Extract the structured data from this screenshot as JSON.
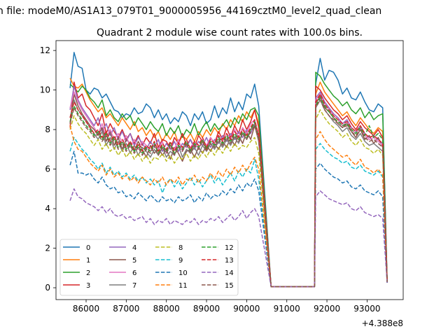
{
  "figure": {
    "suptitle": "n file: modeM0/AS1A13_079T01_9000005956_44169cztM0_level2_quad_clean"
  },
  "chart_data": {
    "type": "line",
    "title": "Quadrant 2 module wise count rates with 100.0s bins.",
    "xlabel": "",
    "ylabel": "",
    "x_offset_label": "+4.388e8",
    "xlim": [
      85250,
      93900
    ],
    "ylim": [
      -0.6,
      12.5
    ],
    "x_ticks": [
      86000,
      87000,
      88000,
      89000,
      90000,
      91000,
      92000,
      93000
    ],
    "y_ticks": [
      0,
      2,
      4,
      6,
      8,
      10,
      12
    ],
    "grid": false,
    "legend": {
      "placement": "lower-left",
      "columns": 4
    },
    "series": [
      {
        "name": "0",
        "style": "solid",
        "color": "#1f77b4",
        "values": [
          10.1,
          11.9,
          11.2,
          11.1,
          10.0,
          9.8,
          10.1,
          10.0,
          9.6,
          9.8,
          9.4,
          9.0,
          8.9,
          8.6,
          8.8,
          8.7,
          9.1,
          8.8,
          8.9,
          9.3,
          9.1,
          8.6,
          9.0,
          8.5,
          8.8,
          8.3,
          8.6,
          8.4,
          8.9,
          8.7,
          8.2,
          8.8,
          8.5,
          8.9,
          8.3,
          8.5,
          9.2,
          8.6,
          9.1,
          8.8,
          9.6,
          8.9,
          9.4,
          9.0,
          9.8,
          9.6,
          10.3,
          9.2,
          0.05,
          0.05,
          10.3,
          11.6,
          10.5,
          11.0,
          10.9,
          10.5,
          9.8,
          10.1,
          9.6,
          9.5,
          9.9,
          9.4,
          9.0,
          8.9,
          9.3,
          9.1,
          0.3
        ]
      },
      {
        "name": "1",
        "style": "solid",
        "color": "#ff7f0e",
        "values": [
          10.6,
          10.2,
          10.1,
          10.3,
          9.9,
          9.5,
          9.2,
          8.9,
          9.1,
          8.6,
          8.8,
          8.5,
          8.2,
          8.6,
          8.3,
          8.0,
          8.4,
          7.9,
          8.1,
          7.7,
          8.0,
          7.6,
          7.9,
          7.4,
          7.8,
          7.5,
          7.9,
          7.3,
          7.7,
          7.5,
          7.8,
          7.4,
          7.9,
          7.6,
          8.0,
          7.7,
          8.1,
          7.8,
          8.3,
          8.0,
          8.5,
          8.2,
          8.7,
          8.4,
          8.9,
          8.6,
          9.0,
          8.3,
          0.05,
          0.05,
          9.8,
          10.4,
          9.9,
          9.6,
          9.3,
          9.0,
          8.7,
          8.9,
          8.5,
          8.2,
          8.6,
          8.3,
          8.0,
          7.8,
          8.1,
          7.9,
          0.25
        ]
      },
      {
        "name": "2",
        "style": "solid",
        "color": "#2ca02c",
        "values": [
          10.3,
          10.1,
          9.9,
          10.2,
          10.0,
          9.6,
          9.4,
          9.1,
          9.5,
          8.7,
          9.0,
          8.6,
          8.4,
          8.8,
          8.5,
          8.7,
          8.2,
          8.6,
          8.3,
          8.0,
          8.4,
          8.1,
          7.9,
          8.3,
          7.7,
          8.1,
          7.8,
          8.2,
          7.6,
          8.0,
          7.8,
          8.3,
          7.7,
          8.1,
          8.4,
          7.9,
          8.3,
          8.0,
          8.2,
          8.5,
          8.1,
          8.6,
          8.3,
          8.8,
          8.5,
          9.0,
          9.1,
          8.7,
          0.05,
          0.05,
          10.9,
          10.7,
          10.3,
          10.0,
          9.7,
          9.5,
          9.2,
          9.4,
          9.0,
          8.8,
          9.1,
          8.6,
          8.9,
          8.5,
          8.7,
          8.8,
          0.3
        ]
      },
      {
        "name": "3",
        "style": "solid",
        "color": "#d62728",
        "values": [
          8.1,
          10.4,
          9.6,
          9.8,
          9.2,
          9.0,
          8.6,
          8.2,
          8.8,
          7.8,
          8.3,
          7.9,
          7.6,
          8.0,
          7.5,
          7.8,
          7.3,
          7.7,
          7.2,
          7.6,
          7.3,
          7.8,
          7.1,
          7.5,
          7.4,
          7.0,
          7.6,
          7.3,
          7.8,
          7.2,
          7.5,
          7.1,
          7.7,
          7.4,
          7.0,
          7.6,
          7.3,
          7.9,
          7.5,
          8.1,
          7.6,
          8.2,
          7.8,
          8.5,
          8.0,
          8.4,
          9.0,
          8.1,
          0.05,
          0.05,
          10.2,
          10.0,
          9.6,
          9.3,
          9.0,
          8.8,
          8.5,
          8.7,
          8.3,
          8.0,
          8.4,
          8.1,
          7.9,
          7.7,
          8.0,
          7.6,
          0.3
        ]
      },
      {
        "name": "4",
        "style": "solid",
        "color": "#9467bd",
        "values": [
          9.0,
          10.2,
          9.5,
          9.1,
          8.8,
          8.5,
          8.2,
          8.6,
          7.9,
          8.3,
          7.7,
          8.1,
          7.5,
          7.9,
          7.4,
          7.8,
          7.2,
          7.6,
          7.3,
          7.0,
          7.4,
          7.1,
          7.5,
          6.9,
          7.3,
          7.0,
          7.4,
          6.9,
          7.3,
          7.1,
          7.5,
          7.0,
          7.4,
          7.2,
          7.6,
          7.1,
          7.5,
          7.3,
          7.7,
          7.4,
          7.8,
          7.5,
          7.9,
          7.6,
          8.0,
          7.8,
          8.3,
          7.6,
          0.05,
          0.05,
          9.6,
          9.9,
          9.4,
          9.1,
          8.8,
          8.6,
          8.3,
          8.5,
          8.1,
          7.9,
          8.2,
          7.8,
          7.6,
          7.7,
          7.5,
          7.3,
          0.3
        ]
      },
      {
        "name": "5",
        "style": "solid",
        "color": "#8c564b",
        "values": [
          8.3,
          9.8,
          9.2,
          8.8,
          8.5,
          8.2,
          8.0,
          7.7,
          8.1,
          7.4,
          7.9,
          7.2,
          7.6,
          7.0,
          7.5,
          7.3,
          6.9,
          7.4,
          7.0,
          6.6,
          7.2,
          6.8,
          7.1,
          6.7,
          7.0,
          6.5,
          7.1,
          6.8,
          6.4,
          6.9,
          7.0,
          6.6,
          7.1,
          6.8,
          7.2,
          6.9,
          7.3,
          7.0,
          7.4,
          7.1,
          7.6,
          7.2,
          7.7,
          7.3,
          7.9,
          7.5,
          8.2,
          7.4,
          0.05,
          0.05,
          9.3,
          9.7,
          9.1,
          8.9,
          8.6,
          8.3,
          8.1,
          8.3,
          7.9,
          7.6,
          8.0,
          7.5,
          7.7,
          7.3,
          7.6,
          7.1,
          0.3
        ]
      },
      {
        "name": "6",
        "style": "solid",
        "color": "#e377c2",
        "values": [
          9.1,
          9.9,
          9.4,
          9.0,
          8.7,
          8.4,
          8.1,
          7.8,
          8.3,
          7.6,
          8.0,
          7.5,
          7.8,
          7.3,
          7.7,
          7.1,
          7.5,
          7.0,
          7.4,
          7.2,
          6.9,
          7.3,
          7.0,
          7.4,
          6.8,
          7.2,
          7.0,
          7.5,
          6.9,
          7.3,
          7.1,
          7.4,
          7.0,
          7.5,
          7.2,
          7.6,
          7.3,
          7.7,
          7.4,
          7.8,
          7.5,
          8.0,
          7.6,
          8.1,
          7.8,
          8.3,
          8.5,
          7.7,
          0.05,
          0.05,
          9.5,
          9.8,
          9.3,
          9.0,
          8.7,
          8.5,
          8.2,
          8.4,
          8.0,
          7.8,
          8.1,
          7.7,
          7.5,
          7.6,
          7.4,
          7.2,
          0.3
        ]
      },
      {
        "name": "7",
        "style": "solid",
        "color": "#7f7f7f",
        "values": [
          8.6,
          9.5,
          9.0,
          8.7,
          8.4,
          8.1,
          7.8,
          7.5,
          7.9,
          7.2,
          7.6,
          7.0,
          7.4,
          6.9,
          7.3,
          6.8,
          7.2,
          6.7,
          7.1,
          6.9,
          6.6,
          7.0,
          6.7,
          7.1,
          6.6,
          6.9,
          6.7,
          7.2,
          6.6,
          7.0,
          6.8,
          7.1,
          6.7,
          7.2,
          6.9,
          7.3,
          7.0,
          7.4,
          7.1,
          7.5,
          7.2,
          7.6,
          7.3,
          7.8,
          7.5,
          8.0,
          8.3,
          7.4,
          0.05,
          0.05,
          9.1,
          9.5,
          9.0,
          8.7,
          8.4,
          8.2,
          7.9,
          8.1,
          7.7,
          7.5,
          7.8,
          7.4,
          7.2,
          7.3,
          7.1,
          6.9,
          0.3
        ]
      },
      {
        "name": "8",
        "style": "dashed",
        "color": "#bcbd22",
        "values": [
          8.0,
          8.7,
          8.3,
          8.0,
          7.8,
          7.5,
          7.2,
          7.5,
          7.0,
          7.3,
          6.9,
          7.1,
          6.7,
          7.0,
          6.6,
          6.9,
          6.5,
          6.8,
          6.4,
          6.7,
          6.3,
          6.6,
          6.5,
          6.8,
          6.4,
          6.7,
          6.3,
          6.6,
          6.5,
          6.8,
          6.4,
          6.7,
          6.5,
          6.9,
          6.6,
          7.0,
          6.7,
          7.1,
          6.8,
          7.2,
          6.9,
          7.3,
          7.0,
          7.2,
          7.1,
          7.4,
          7.6,
          6.8,
          0.05,
          0.05,
          8.5,
          9.0,
          8.6,
          8.3,
          8.1,
          7.9,
          7.6,
          7.8,
          7.4,
          7.2,
          7.5,
          7.1,
          7.0,
          6.8,
          7.0,
          6.7,
          0.3
        ]
      },
      {
        "name": "9",
        "style": "dashed",
        "color": "#17becf",
        "values": [
          6.9,
          7.6,
          7.3,
          7.0,
          6.8,
          6.5,
          6.3,
          6.0,
          6.3,
          5.8,
          6.1,
          5.7,
          5.9,
          5.6,
          5.8,
          5.5,
          5.7,
          5.4,
          5.6,
          5.3,
          5.5,
          5.2,
          5.4,
          4.8,
          5.3,
          5.5,
          5.1,
          5.4,
          5.0,
          5.3,
          5.6,
          5.2,
          5.5,
          5.1,
          5.4,
          5.7,
          5.3,
          5.6,
          5.2,
          5.5,
          5.8,
          5.4,
          5.9,
          5.6,
          6.0,
          5.8,
          6.5,
          5.5,
          0.05,
          0.05,
          7.0,
          7.3,
          7.0,
          6.8,
          6.6,
          6.5,
          6.3,
          6.4,
          6.1,
          6.0,
          6.2,
          5.9,
          5.8,
          5.7,
          5.9,
          5.6,
          0.3
        ]
      },
      {
        "name": "10",
        "style": "dashed",
        "color": "#1f77b4",
        "values": [
          6.2,
          6.9,
          5.8,
          5.8,
          5.7,
          5.8,
          5.5,
          5.3,
          5.6,
          5.2,
          5.0,
          5.1,
          4.8,
          4.9,
          4.6,
          4.7,
          4.5,
          4.8,
          4.6,
          4.4,
          4.7,
          4.5,
          4.3,
          4.6,
          4.4,
          4.5,
          4.3,
          4.6,
          4.4,
          4.5,
          4.7,
          4.3,
          4.6,
          4.4,
          4.8,
          4.5,
          4.7,
          4.6,
          4.9,
          4.7,
          5.0,
          4.8,
          5.2,
          4.9,
          5.3,
          5.1,
          5.5,
          4.9,
          0.05,
          0.05,
          6.0,
          6.3,
          6.0,
          5.8,
          5.6,
          5.5,
          5.3,
          5.4,
          5.1,
          5.0,
          5.2,
          4.9,
          4.8,
          4.7,
          4.9,
          4.6,
          0.25
        ]
      },
      {
        "name": "11",
        "style": "dashed",
        "color": "#ff7f0e",
        "values": [
          8.2,
          7.4,
          7.0,
          6.9,
          6.6,
          6.3,
          6.1,
          5.9,
          6.2,
          5.7,
          6.0,
          5.6,
          5.8,
          5.5,
          5.7,
          5.4,
          5.6,
          5.3,
          5.6,
          5.4,
          5.2,
          5.5,
          5.3,
          5.6,
          5.2,
          5.5,
          5.3,
          5.6,
          5.2,
          5.5,
          5.4,
          5.7,
          5.3,
          5.6,
          5.4,
          5.8,
          5.5,
          5.9,
          5.6,
          6.0,
          5.7,
          6.1,
          5.8,
          6.2,
          5.9,
          6.3,
          6.6,
          6.0,
          0.05,
          0.05,
          7.5,
          7.9,
          7.5,
          7.2,
          7.0,
          6.8,
          6.6,
          6.7,
          6.4,
          6.2,
          6.5,
          6.1,
          6.0,
          5.8,
          6.0,
          5.7,
          0.3
        ]
      },
      {
        "name": "12",
        "style": "dashed",
        "color": "#2ca02c",
        "values": [
          8.4,
          9.2,
          8.8,
          8.5,
          8.2,
          8.0,
          7.7,
          7.9,
          7.5,
          7.8,
          7.3,
          7.6,
          7.1,
          7.4,
          7.0,
          7.3,
          6.9,
          7.2,
          6.8,
          7.1,
          6.9,
          7.3,
          6.8,
          7.2,
          6.9,
          7.3,
          6.8,
          7.2,
          7.0,
          7.4,
          6.9,
          7.3,
          7.1,
          7.5,
          7.0,
          7.4,
          7.2,
          7.6,
          7.3,
          7.7,
          7.4,
          7.8,
          7.5,
          7.9,
          7.6,
          8.0,
          8.4,
          7.6,
          0.05,
          0.05,
          9.2,
          9.6,
          9.2,
          8.9,
          8.6,
          8.4,
          8.2,
          8.3,
          8.0,
          7.8,
          8.1,
          7.7,
          8.2,
          7.6,
          7.8,
          7.5,
          0.3
        ]
      },
      {
        "name": "13",
        "style": "dashed",
        "color": "#d62728",
        "values": [
          8.6,
          9.4,
          9.0,
          8.7,
          8.4,
          8.1,
          7.8,
          8.0,
          7.6,
          7.9,
          7.4,
          7.7,
          7.2,
          7.5,
          7.1,
          7.4,
          7.0,
          7.3,
          6.9,
          7.2,
          7.0,
          7.4,
          6.9,
          7.3,
          7.0,
          7.4,
          6.9,
          7.3,
          7.1,
          7.5,
          7.0,
          7.4,
          7.2,
          7.6,
          7.1,
          7.5,
          7.3,
          7.7,
          7.4,
          7.8,
          7.5,
          7.9,
          7.6,
          8.0,
          7.7,
          8.1,
          8.5,
          7.7,
          0.05,
          0.05,
          9.4,
          9.8,
          9.3,
          9.0,
          8.7,
          8.5,
          8.3,
          8.4,
          8.1,
          7.9,
          8.2,
          7.8,
          7.6,
          7.7,
          7.5,
          7.3,
          0.3
        ]
      },
      {
        "name": "14",
        "style": "dashed",
        "color": "#9467bd",
        "values": [
          4.4,
          5.0,
          4.6,
          4.5,
          4.3,
          4.2,
          4.1,
          3.9,
          4.1,
          3.8,
          4.0,
          3.7,
          3.6,
          3.7,
          3.5,
          3.6,
          3.4,
          3.5,
          3.6,
          3.3,
          3.5,
          3.2,
          3.4,
          3.3,
          3.5,
          3.2,
          3.4,
          3.3,
          3.2,
          3.4,
          3.3,
          3.5,
          3.2,
          3.4,
          3.3,
          3.5,
          3.4,
          3.6,
          3.3,
          3.5,
          3.7,
          3.4,
          3.6,
          3.9,
          3.5,
          3.8,
          4.0,
          3.6,
          0.05,
          0.05,
          4.6,
          4.9,
          4.7,
          4.5,
          4.4,
          4.3,
          4.2,
          4.3,
          4.0,
          3.9,
          4.1,
          3.8,
          3.7,
          3.6,
          3.7,
          3.5,
          0.25
        ]
      },
      {
        "name": "15",
        "style": "dashed",
        "color": "#8c564b",
        "values": [
          8.3,
          9.1,
          8.7,
          8.4,
          8.1,
          7.9,
          7.6,
          7.8,
          7.4,
          7.7,
          7.2,
          7.5,
          7.0,
          7.3,
          6.9,
          7.2,
          6.8,
          7.1,
          6.7,
          7.0,
          6.8,
          7.2,
          6.7,
          7.1,
          6.8,
          7.2,
          6.7,
          7.1,
          6.9,
          7.3,
          6.8,
          7.2,
          7.0,
          7.4,
          6.9,
          7.3,
          7.1,
          7.5,
          7.2,
          7.6,
          7.3,
          7.7,
          7.4,
          7.8,
          7.5,
          7.9,
          8.2,
          7.5,
          0.05,
          0.05,
          9.1,
          9.5,
          9.0,
          8.7,
          8.5,
          8.3,
          8.1,
          8.2,
          7.9,
          7.7,
          8.0,
          7.6,
          7.4,
          7.5,
          7.3,
          7.1,
          0.3
        ]
      }
    ],
    "x_start": 85600,
    "x_step_main": 100,
    "gap": [
      90600,
      91700
    ],
    "x_end": 93500
  }
}
